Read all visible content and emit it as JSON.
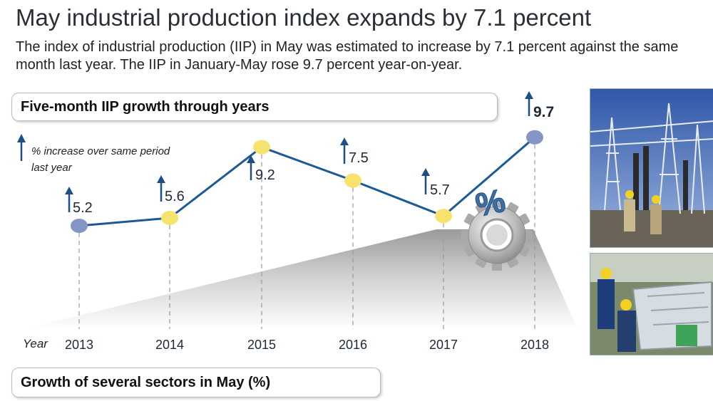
{
  "title": "May industrial production index expands by 7.1 percent",
  "subtitle": "The index of industrial production (IIP) in May was estimated to increase by 7.1 percent against the same month last year. The IIP in January-May rose 9.7 percent year-on-year.",
  "section1_title": "Five-month IIP growth through years",
  "section2_title": "Growth of several sectors in May (%)",
  "legend": {
    "line1": "% increase over same period",
    "line2": "last year"
  },
  "colors": {
    "line": "#1b5a96",
    "arrow": "#1c4f86",
    "point_blue": "#8497c4",
    "point_yellow": "#f6e36e"
  },
  "icons": {
    "legend": "up-arrow-icon",
    "gear": "gear-icon",
    "percent": "percent-icon"
  },
  "decor": {
    "percent_symbol": "%"
  },
  "chart_data": {
    "type": "line",
    "xlabel": "Year",
    "ylabel": "",
    "categories": [
      "2013",
      "2014",
      "2015",
      "2016",
      "2017",
      "2018"
    ],
    "values": [
      5.2,
      5.6,
      9.2,
      7.5,
      5.7,
      9.7
    ],
    "labels": [
      "5.2",
      "5.6",
      "9.2",
      "7.5",
      "5.7",
      "9.7"
    ],
    "point_colors": [
      "blue",
      "yellow",
      "yellow",
      "yellow",
      "yellow",
      "blue"
    ],
    "grid": false
  }
}
